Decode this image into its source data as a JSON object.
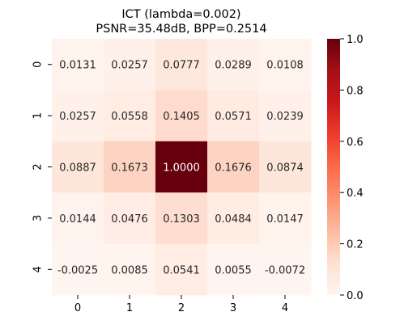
{
  "chart_data": {
    "type": "heatmap",
    "title": [
      "ICT (lambda=0.002)",
      "PSNR=35.48dB, BPP=0.2514"
    ],
    "x_categories": [
      "0",
      "1",
      "2",
      "3",
      "4"
    ],
    "y_categories": [
      "0",
      "1",
      "2",
      "3",
      "4"
    ],
    "values": [
      [
        0.0131,
        0.0257,
        0.0777,
        0.0289,
        0.0108
      ],
      [
        0.0257,
        0.0558,
        0.1405,
        0.0571,
        0.0239
      ],
      [
        0.0887,
        0.1673,
        1.0,
        0.1676,
        0.0874
      ],
      [
        0.0144,
        0.0476,
        0.1303,
        0.0484,
        0.0147
      ],
      [
        -0.0025,
        0.0085,
        0.0541,
        0.0055,
        -0.0072
      ]
    ],
    "value_format_decimals": 4,
    "colormap": "Reds",
    "color_range": [
      0.0,
      1.0
    ],
    "colorbar_ticks": [
      "0.0",
      "0.2",
      "0.4",
      "0.6",
      "0.8",
      "1.0"
    ],
    "colorbar_tick_values": [
      0.0,
      0.2,
      0.4,
      0.6,
      0.8,
      1.0
    ],
    "annotation_colors": {
      "dark_text": "#262626",
      "light_text": "#ffffff"
    }
  }
}
